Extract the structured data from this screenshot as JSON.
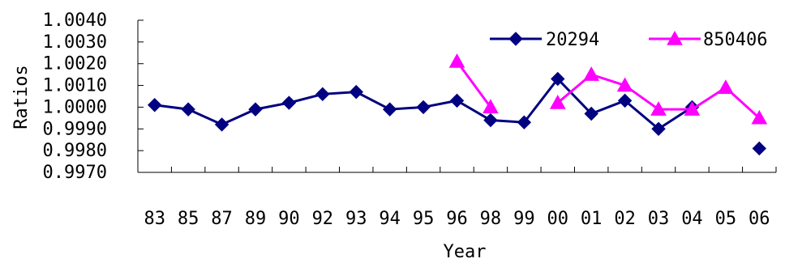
{
  "chart_data": {
    "type": "line",
    "title": "",
    "xlabel": "Year",
    "ylabel": "Ratios",
    "categories": [
      "83",
      "85",
      "87",
      "89",
      "90",
      "92",
      "93",
      "94",
      "95",
      "96",
      "98",
      "99",
      "00",
      "01",
      "02",
      "03",
      "04",
      "05",
      "06"
    ],
    "ylim": [
      0.997,
      1.004
    ],
    "yticks": [
      "0.9970",
      "0.9980",
      "0.9990",
      "1.0000",
      "1.0010",
      "1.0020",
      "1.0030",
      "1.0040"
    ],
    "grid": false,
    "legend_position": "top-right",
    "series": [
      {
        "name": "20294",
        "color": "#000080",
        "marker": "diamond",
        "values": [
          1.0001,
          0.9999,
          0.9992,
          0.9999,
          1.0002,
          1.0006,
          1.0007,
          0.9999,
          1.0,
          1.0003,
          0.9994,
          0.9993,
          1.0013,
          0.9997,
          1.0003,
          0.999,
          1.0,
          null,
          0.9981
        ]
      },
      {
        "name": "850406",
        "color": "#ff00ff",
        "marker": "triangle",
        "values": [
          null,
          null,
          null,
          null,
          null,
          null,
          null,
          null,
          null,
          1.0021,
          1.0,
          null,
          1.0002,
          1.0015,
          1.001,
          0.9999,
          0.9999,
          1.0009,
          0.9995
        ]
      }
    ]
  }
}
